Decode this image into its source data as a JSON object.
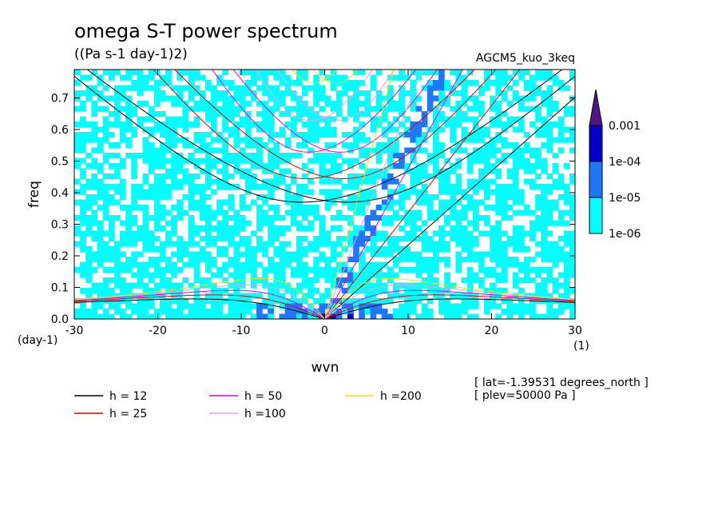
{
  "chart_data": {
    "type": "heatmap",
    "title": "omega S-T power spectrum",
    "subtitle": "((Pa s-1 day-1)2)",
    "dataset_label": "AGCM5_kuo_3keq",
    "xlabel": "wvn",
    "ylabel": "freq",
    "x_unit": "(1)",
    "y_unit": "(day-1)",
    "xlim": [
      -30,
      30
    ],
    "ylim": [
      0,
      0.79
    ],
    "xticks": [
      "-30",
      "-20",
      "-10",
      "0",
      "10",
      "20",
      "30"
    ],
    "yticks": [
      "0.0",
      "0.1",
      "0.2",
      "0.3",
      "0.4",
      "0.5",
      "0.6",
      "0.7"
    ],
    "xtick_values": [
      -30,
      -20,
      -10,
      0,
      10,
      20,
      30
    ],
    "ytick_values": [
      0,
      0.1,
      0.2,
      0.3,
      0.4,
      0.5,
      0.6,
      0.7
    ],
    "colorbar": {
      "levels": [
        "1e-06",
        "1e-05",
        "1e-04",
        "0.001"
      ],
      "colors": [
        "#00ffff",
        "#1e78ff",
        "#0000c8",
        "#50148c"
      ]
    },
    "series": [
      {
        "name": "h = 12",
        "h": 12,
        "color": "#000000"
      },
      {
        "name": "h = 25",
        "h": 25,
        "color": "#e60000"
      },
      {
        "name": "h = 50",
        "h": 50,
        "color": "#e600e6"
      },
      {
        "name": "h =100",
        "h": 100,
        "color": "#e6a0e6"
      },
      {
        "name": "h =200",
        "h": 200,
        "color": "#e6e600"
      }
    ],
    "annotations": [
      "[ lat=-1.39531 degrees_north ]",
      "[ plev=50000 Pa ]"
    ],
    "grid": false,
    "legend_placement": "bottom"
  }
}
